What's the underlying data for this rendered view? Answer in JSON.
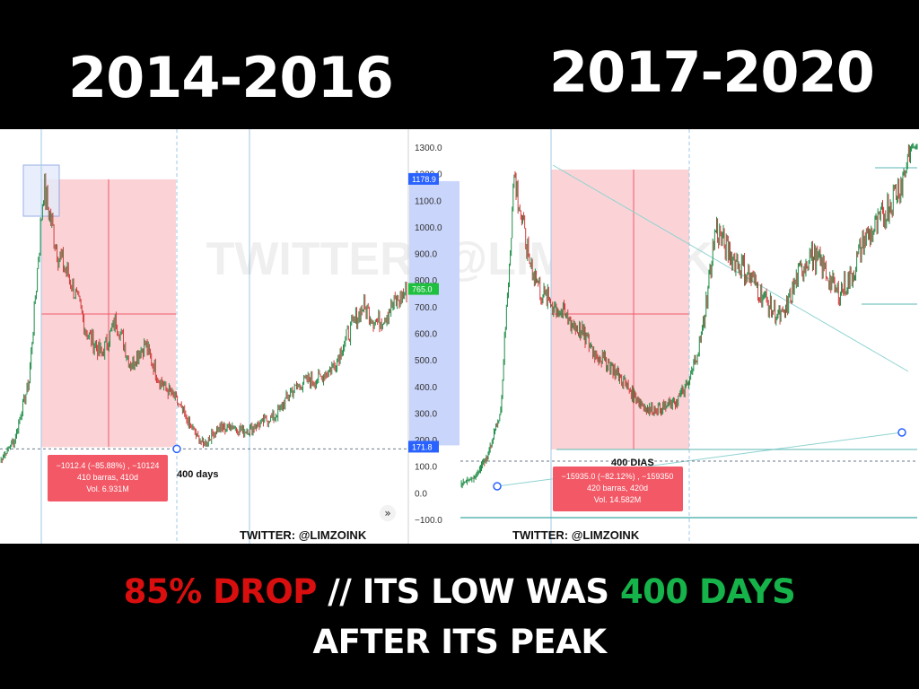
{
  "titles": {
    "left": "2014-2016",
    "right": "2017-2020"
  },
  "watermark": "TWITTER: @LIMZOINK",
  "credit": "TWITTER: @LIMZOINK",
  "caption": {
    "drop": "85% DROP",
    "sep": " // ITS LOW WAS ",
    "days": "400 DAYS",
    "line2": "AFTER ITS PEAK"
  },
  "colors": {
    "candle": "#1f6b3a",
    "drop_zone": "#fbd3d6",
    "label_bg": "#f25866",
    "axis_blue": "#2962ff",
    "axis_green": "#1fbf3f",
    "highlight": "#c9d5fb"
  },
  "chart_data": [
    {
      "type": "line",
      "period": "2014-2016",
      "y_axis_ticks": [
        "1300.0",
        "1200.0",
        "1100.0",
        "1000.0",
        "900.0",
        "800.0",
        "700.0",
        "600.0",
        "500.0",
        "400.0",
        "300.0",
        "200.0",
        "100.0",
        "0.0",
        "−100.0"
      ],
      "ylim": [
        -100,
        1300
      ],
      "price_tags": {
        "high": "1178.9",
        "current": "765.0",
        "low": "171.8"
      },
      "series": [
        {
          "values": [
            120,
            200,
            420,
            1150,
            900,
            780,
            600,
            520,
            650,
            480,
            560,
            420,
            360,
            260,
            180,
            240,
            250,
            230,
            265,
            290,
            380,
            420,
            430,
            480,
            600,
            700,
            640,
            700,
            760
          ]
        }
      ],
      "peak": 1178.9,
      "low": 171.8,
      "annotation": {
        "days_label": "400 days",
        "measure": "−1012.4 (−85.88%) , −10124",
        "bars": "410 barras, 410d",
        "volume": "Vol. 6.931M"
      }
    },
    {
      "type": "line",
      "period": "2017-2020",
      "series": [
        {
          "values": [
            15,
            40,
            120,
            300,
            1200,
            900,
            750,
            700,
            650,
            600,
            520,
            480,
            420,
            350,
            300,
            310,
            330,
            400,
            600,
            1000,
            900,
            850,
            780,
            700,
            650,
            800,
            900,
            850,
            750,
            800,
            950,
            1000,
            1100,
            1200,
            1500
          ]
        }
      ],
      "peak_index": 4,
      "low_index": 15,
      "annotation": {
        "days_label": "400 DIAS",
        "measure": "−15935.0 (−82.12%) , −159350",
        "bars": "420 barras, 420d",
        "volume": "Vol. 14.582M"
      }
    }
  ]
}
